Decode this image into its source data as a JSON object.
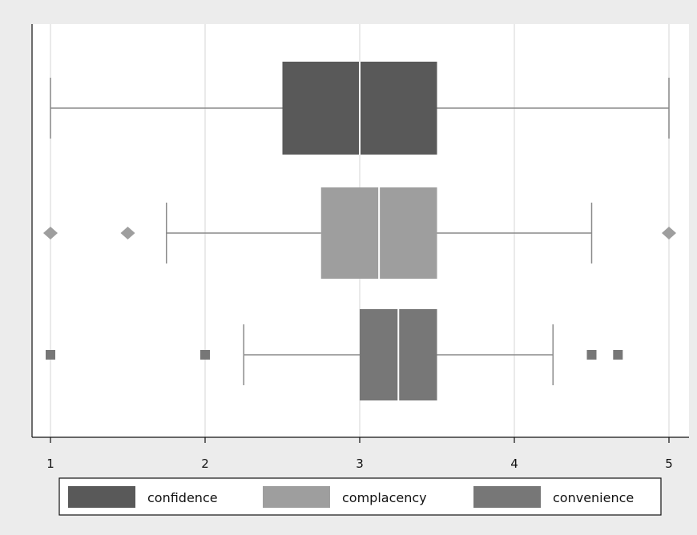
{
  "chart_data": {
    "type": "boxplot",
    "orientation": "horizontal",
    "xlim": [
      1,
      5
    ],
    "xticks": [
      "1",
      "2",
      "3",
      "4",
      "5"
    ],
    "grid": true,
    "legend_position": "bottom",
    "series": [
      {
        "name": "confidence",
        "color": "#595959",
        "whisker_low": 1,
        "q1": 2.5,
        "median": 3,
        "q3": 3.5,
        "whisker_high": 5,
        "outliers": [],
        "marker": "none"
      },
      {
        "name": "complacency",
        "color": "#9e9e9e",
        "whisker_low": 1.75,
        "q1": 2.75,
        "median": 3.125,
        "q3": 3.5,
        "whisker_high": 4.5,
        "outliers": [
          1,
          1.5,
          5
        ],
        "marker": "diamond"
      },
      {
        "name": "convenience",
        "color": "#777777",
        "whisker_low": 2.25,
        "q1": 3,
        "median": 3.25,
        "q3": 3.5,
        "whisker_high": 4.25,
        "outliers": [
          1,
          2,
          4.5,
          4.67
        ],
        "marker": "square"
      }
    ]
  }
}
